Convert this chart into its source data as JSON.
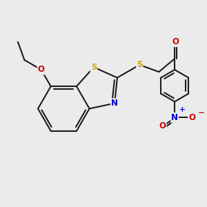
{
  "bg_color": "#ebebeb",
  "bond_color": "#1a1a1a",
  "bond_width": 1.5,
  "atom_colors": {
    "S": "#ccaa00",
    "N": "#0000cc",
    "O": "#cc0000",
    "C": "#1a1a1a"
  },
  "font_size_atom": 8.5
}
